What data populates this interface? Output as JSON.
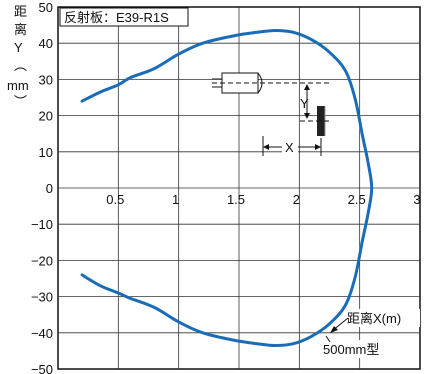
{
  "chart_data": {
    "type": "line",
    "xlim": [
      0,
      3
    ],
    "ylim": [
      -50,
      50
    ],
    "grid": true,
    "x_ticks": [
      "0.5",
      "1",
      "1.5",
      "2",
      "2.5",
      "3"
    ],
    "y_ticks": [
      "50",
      "40",
      "30",
      "20",
      "10",
      "0",
      "−10",
      "−20",
      "−30",
      "−40",
      "−50"
    ],
    "x_origin_label": "0",
    "ylabel": "距离Y(mm)",
    "annotation": "反射板：E39-R1S",
    "series": [
      {
        "color": "#1a6cb8",
        "points": [
          [
            0.2,
            24.0
          ],
          [
            0.35,
            26.5
          ],
          [
            0.5,
            28.5
          ],
          [
            0.6,
            30.5
          ],
          [
            0.8,
            33.0
          ],
          [
            1.0,
            37.0
          ],
          [
            1.2,
            40.0
          ],
          [
            1.45,
            42.0
          ],
          [
            1.65,
            43.0
          ],
          [
            1.8,
            43.5
          ],
          [
            1.95,
            43.0
          ],
          [
            2.1,
            41.0
          ],
          [
            2.25,
            37.5
          ],
          [
            2.38,
            32.5
          ],
          [
            2.46,
            25.0
          ],
          [
            2.52,
            15.0
          ],
          [
            2.57,
            7.0
          ],
          [
            2.6,
            0.0
          ],
          [
            2.57,
            -7.0
          ],
          [
            2.52,
            -15.0
          ],
          [
            2.46,
            -25.0
          ],
          [
            2.38,
            -32.5
          ],
          [
            2.25,
            -37.5
          ],
          [
            2.1,
            -41.0
          ],
          [
            1.95,
            -43.0
          ],
          [
            1.8,
            -43.5
          ],
          [
            1.65,
            -43.0
          ],
          [
            1.45,
            -42.0
          ],
          [
            1.2,
            -40.0
          ],
          [
            1.0,
            -37.0
          ],
          [
            0.8,
            -33.0
          ],
          [
            0.6,
            -30.5
          ],
          [
            0.5,
            -29.0
          ],
          [
            0.35,
            -27.0
          ],
          [
            0.2,
            -24.0
          ]
        ]
      }
    ],
    "labels": {
      "series_label": "距离X(m)",
      "model_label": "500mm型",
      "diagram_x": "X",
      "diagram_y": "Y"
    }
  }
}
